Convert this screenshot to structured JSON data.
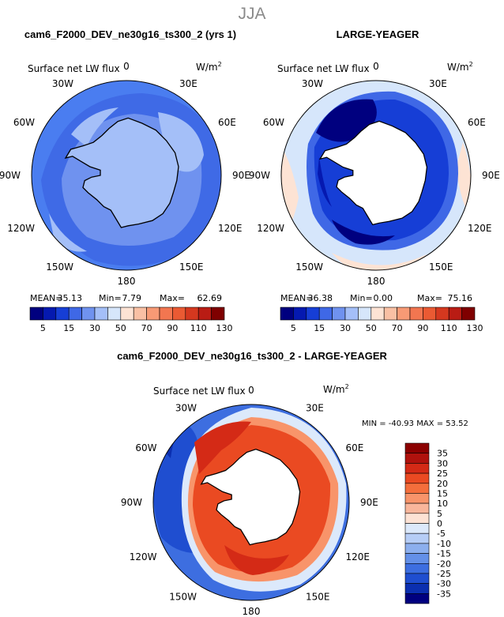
{
  "figure": {
    "season": "JJA",
    "top_left_title": "cam6_F2000_DEV_ne30g16_ts300_2 (yrs 1)",
    "top_right_title": "LARGE-YEAGER",
    "bottom_title": "cam6_F2000_DEV_ne30g16_ts300_2 - LARGE-YEAGER"
  },
  "chart_data": [
    {
      "type": "heatmap",
      "projection": "south-polar-stereographic",
      "variable": "Surface net LW flux",
      "units": "W/m2",
      "dataset": "cam6_F2000_DEV_ne30g16_ts300_2 (yrs 1)",
      "lon_labels": [
        "0",
        "30E",
        "60E",
        "90E",
        "120E",
        "150E",
        "180",
        "150W",
        "120W",
        "90W",
        "60W",
        "30W"
      ],
      "stats": {
        "mean_label": "MEAN=",
        "mean": "35.13",
        "min_label": "Min=",
        "min": "7.79",
        "max_label": "Max=",
        "max": "62.69"
      },
      "colorbar_levels": [
        "5",
        "15",
        "30",
        "50",
        "70",
        "90",
        "110",
        "130"
      ],
      "colorbar_colors": [
        "#00007f",
        "#0519b0",
        "#163ed6",
        "#3f68e6",
        "#6f92ef",
        "#a4bff8",
        "#d6e6fb",
        "#fde3d4",
        "#f9c0a4",
        "#f79a75",
        "#f27650",
        "#ea5a33",
        "#d5381f",
        "#b91c14",
        "#7f0000"
      ]
    },
    {
      "type": "heatmap",
      "projection": "south-polar-stereographic",
      "variable": "Surface net LW flux",
      "units": "W/m2",
      "dataset": "LARGE-YEAGER",
      "lon_labels": [
        "0",
        "30E",
        "60E",
        "90E",
        "120E",
        "150E",
        "180",
        "150W",
        "120W",
        "90W",
        "60W",
        "30W"
      ],
      "stats": {
        "mean_label": "MEAN=",
        "mean": "36.38",
        "min_label": "Min=",
        "min": "0.00",
        "max_label": "Max=",
        "max": "75.16"
      },
      "colorbar_levels": [
        "5",
        "15",
        "30",
        "50",
        "70",
        "90",
        "110",
        "130"
      ],
      "colorbar_colors": [
        "#00007f",
        "#0519b0",
        "#163ed6",
        "#3f68e6",
        "#6f92ef",
        "#a4bff8",
        "#d6e6fb",
        "#fde3d4",
        "#f9c0a4",
        "#f79a75",
        "#f27650",
        "#ea5a33",
        "#d5381f",
        "#b91c14",
        "#7f0000"
      ]
    },
    {
      "type": "heatmap",
      "projection": "south-polar-stereographic",
      "variable": "Surface net LW flux",
      "units": "W/m2",
      "dataset": "cam6_F2000_DEV_ne30g16_ts300_2 - LARGE-YEAGER",
      "lon_labels": [
        "0",
        "30E",
        "60E",
        "90E",
        "120E",
        "150E",
        "180",
        "150W",
        "120W",
        "90W",
        "60W",
        "30W"
      ],
      "stats_text": "MIN = -40.93 MAX =  53.52",
      "colorbar_levels": [
        "35",
        "30",
        "25",
        "20",
        "15",
        "10",
        "5",
        "0",
        "-5",
        "-10",
        "-15",
        "-20",
        "-25",
        "-30",
        "-35"
      ],
      "colorbar_colors": [
        "#8b0000",
        "#b0120d",
        "#d42a16",
        "#ea4a22",
        "#f46e3c",
        "#f8946a",
        "#f9b69b",
        "#fde2d4",
        "#dce9fb",
        "#b6cdf6",
        "#8cafee",
        "#6490e8",
        "#3d6ee0",
        "#1f4ed0",
        "#0b2fb0",
        "#00007f"
      ]
    }
  ]
}
